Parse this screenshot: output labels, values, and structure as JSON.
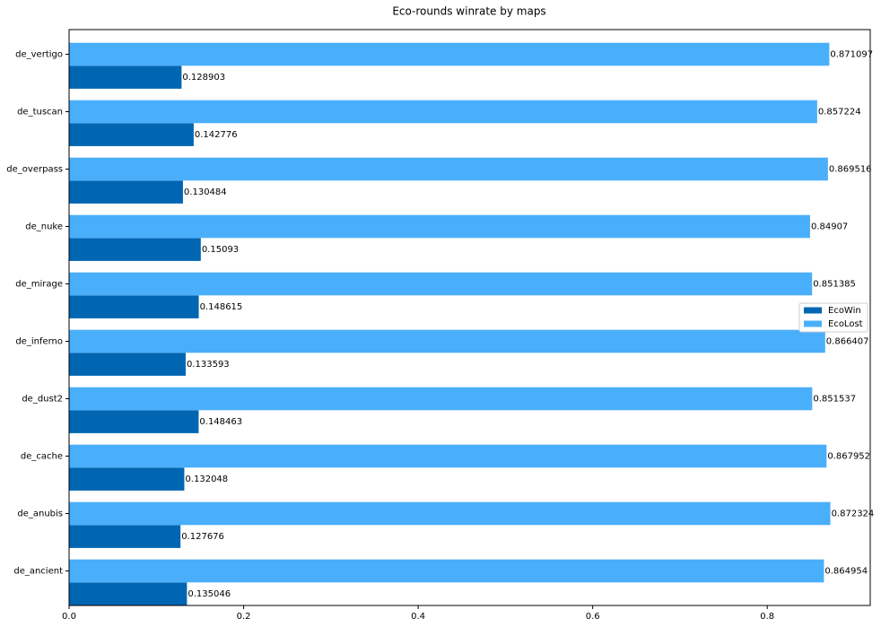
{
  "chart_data": {
    "type": "barh",
    "title": "Eco-rounds winrate by maps",
    "categories": [
      "de_ancient",
      "de_anubis",
      "de_cache",
      "de_dust2",
      "de_inferno",
      "de_mirage",
      "de_nuke",
      "de_overpass",
      "de_tuscan",
      "de_vertigo"
    ],
    "series": [
      {
        "name": "EcoWin",
        "color": "#0066b2",
        "values": [
          0.135046,
          0.127676,
          0.132048,
          0.148463,
          0.133593,
          0.148615,
          0.15093,
          0.130484,
          0.142776,
          0.128903
        ]
      },
      {
        "name": "EcoLost",
        "color": "#4aaffa",
        "values": [
          0.864954,
          0.872324,
          0.867952,
          0.851537,
          0.866407,
          0.851385,
          0.84907,
          0.869516,
          0.857224,
          0.871097
        ]
      }
    ],
    "xlim": [
      0,
      0.918
    ],
    "xticks": [
      {
        "value": 0,
        "label": "0.0"
      },
      0.2,
      0.4,
      0.6,
      0.8
    ],
    "legend": "center right"
  }
}
